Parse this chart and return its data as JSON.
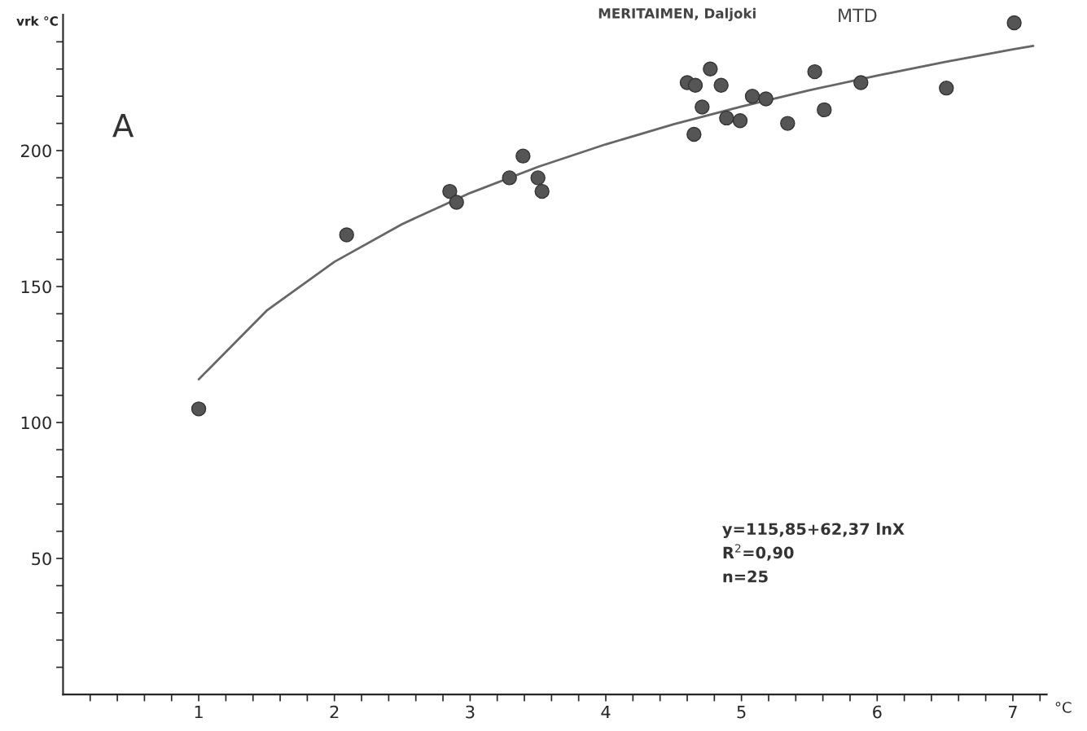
{
  "chart_data": {
    "type": "scatter",
    "title": "MERITAIMEN, Daljoki",
    "subtitle": "MTD",
    "xlabel": "°C",
    "ylabel": "vrk °C",
    "x": [
      1.0,
      2.09,
      2.85,
      2.9,
      3.29,
      3.39,
      3.5,
      3.53,
      4.6,
      4.66,
      4.77,
      4.85,
      4.71,
      4.65,
      4.89,
      4.99,
      5.08,
      5.18,
      5.34,
      5.54,
      5.61,
      5.88,
      6.51,
      7.01
    ],
    "series": [
      {
        "color": "#555555",
        "marker": "circle",
        "values": [
          105,
          169,
          185,
          181,
          190,
          198,
          190,
          185,
          225,
          224,
          230,
          224,
          216,
          206,
          212,
          211,
          220,
          219,
          210,
          229,
          215,
          225,
          223,
          247
        ]
      },
      {
        "type": "line",
        "color": "#666666",
        "marker": "none",
        "line_style": "solid",
        "x": [
          1,
          1.5,
          2,
          2.5,
          3,
          3.5,
          4,
          4.5,
          5,
          5.5,
          6,
          6.5,
          7,
          7.15
        ],
        "values": [
          115.9,
          141.1,
          159.1,
          173.0,
          184.4,
          194.0,
          202.3,
          209.7,
          216.2,
          222.2,
          227.6,
          232.6,
          237.2,
          238.5
        ]
      }
    ],
    "xlim": [
      0,
      7.25
    ],
    "ylim": [
      0,
      250
    ],
    "xticks": [
      {
        "value": 0.2,
        "label": null
      },
      {
        "value": 0.4,
        "label": null
      },
      {
        "value": 0.6,
        "label": null
      },
      {
        "value": 0.8,
        "label": null
      },
      1,
      {
        "value": 1.2,
        "label": null
      },
      {
        "value": 1.4,
        "label": null
      },
      {
        "value": 1.6,
        "label": null
      },
      {
        "value": 1.8,
        "label": null
      },
      2,
      {
        "value": 2.2,
        "label": null
      },
      {
        "value": 2.4,
        "label": null
      },
      {
        "value": 2.6,
        "label": null
      },
      {
        "value": 2.8,
        "label": null
      },
      3,
      {
        "value": 3.2,
        "label": null
      },
      {
        "value": 3.4,
        "label": null
      },
      {
        "value": 3.6,
        "label": null
      },
      {
        "value": 3.8,
        "label": null
      },
      4,
      {
        "value": 4.2,
        "label": null
      },
      {
        "value": 4.4,
        "label": null
      },
      {
        "value": 4.6,
        "label": null
      },
      {
        "value": 4.8,
        "label": null
      },
      5,
      {
        "value": 5.2,
        "label": null
      },
      {
        "value": 5.4,
        "label": null
      },
      {
        "value": 5.6,
        "label": null
      },
      {
        "value": 5.8,
        "label": null
      },
      6,
      {
        "value": 6.2,
        "label": null
      },
      {
        "value": 6.4,
        "label": null
      },
      {
        "value": 6.6,
        "label": null
      },
      {
        "value": 6.8,
        "label": null
      },
      7,
      {
        "value": 7.2,
        "label": null
      }
    ],
    "yticks": [
      {
        "value": 10,
        "label": null
      },
      {
        "value": 20,
        "label": null
      },
      {
        "value": 30,
        "label": null
      },
      {
        "value": 40,
        "label": null
      },
      50,
      {
        "value": 60,
        "label": null
      },
      {
        "value": 70,
        "label": null
      },
      {
        "value": 80,
        "label": null
      },
      {
        "value": 90,
        "label": null
      },
      100,
      {
        "value": 110,
        "label": null
      },
      {
        "value": 120,
        "label": null
      },
      {
        "value": 130,
        "label": null
      },
      {
        "value": 140,
        "label": null
      },
      150,
      {
        "value": 160,
        "label": null
      },
      {
        "value": 170,
        "label": null
      },
      {
        "value": 180,
        "label": null
      },
      {
        "value": 190,
        "label": null
      },
      200,
      {
        "value": 210,
        "label": null
      },
      {
        "value": 220,
        "label": null
      },
      {
        "value": 230,
        "label": null
      },
      {
        "value": 240,
        "label": null
      }
    ],
    "grid": false,
    "legend": false,
    "annotations": [
      "A",
      "y=115,85+62,37 lnX",
      "R$^{2}$=0,90",
      "n=25"
    ]
  }
}
